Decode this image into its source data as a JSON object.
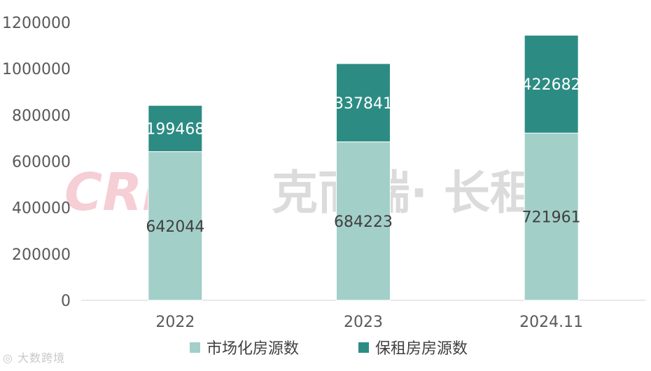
{
  "watermark": {
    "brand": "CRIC",
    "text": "克而瑞· 长租",
    "corner": "大数跨境"
  },
  "chart_data": {
    "type": "bar",
    "stacked": true,
    "categories": [
      "2022",
      "2023",
      "2024.11"
    ],
    "series": [
      {
        "name": "市场化房源数",
        "color": "#a3cfc9",
        "label_color": "#404040",
        "values": [
          642044,
          684223,
          721961
        ]
      },
      {
        "name": "保租房房源数",
        "color": "#2c8c83",
        "label_color": "#ffffff",
        "values": [
          199468,
          337841,
          422682
        ]
      }
    ],
    "ylim": [
      0,
      1200000
    ],
    "yticks": [
      "0",
      "200000",
      "400000",
      "600000",
      "800000",
      "1000000",
      "1200000"
    ],
    "grid": false,
    "legend": "bottom",
    "title": "",
    "xlabel": "",
    "ylabel": ""
  }
}
